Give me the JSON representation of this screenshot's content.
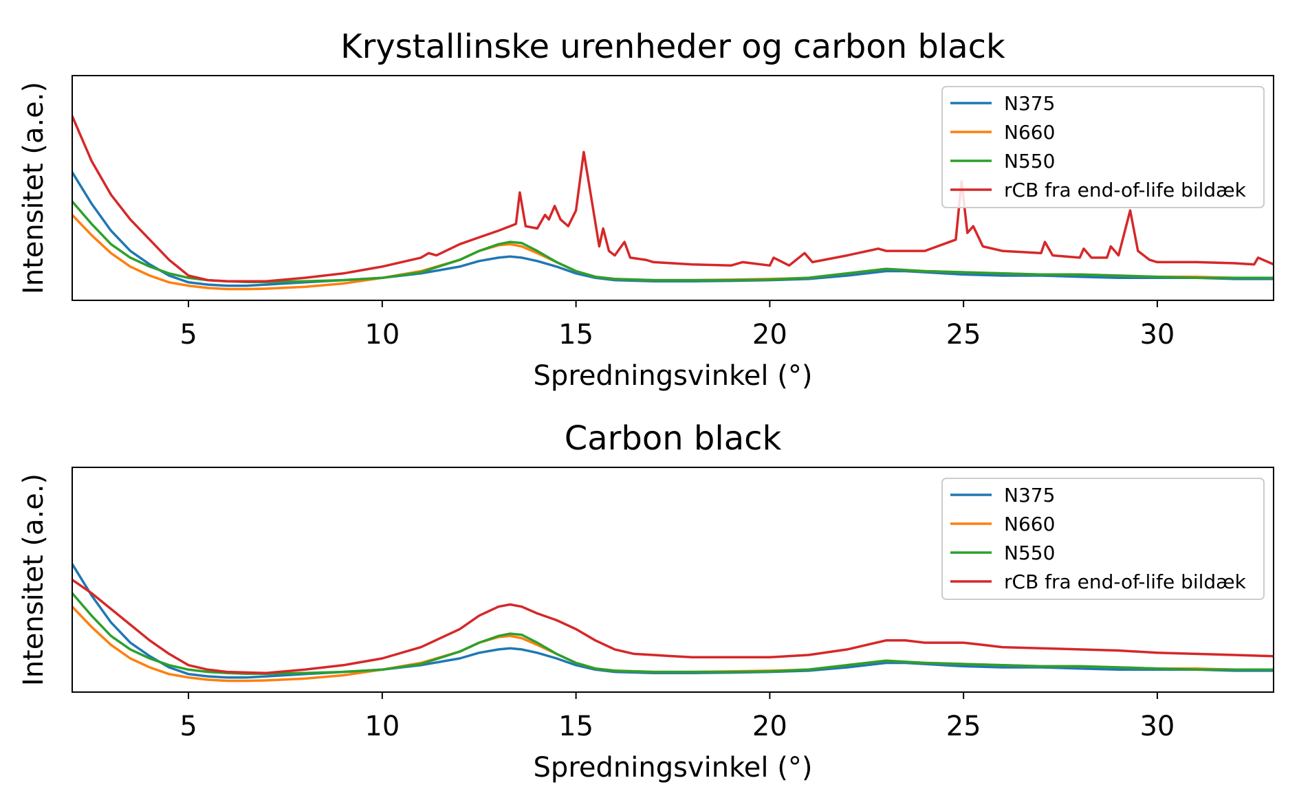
{
  "chart_data": [
    {
      "type": "line",
      "title": "Krystallinske urenheder og carbon black",
      "xlabel": "Spredningsvinkel (°)",
      "ylabel": "Intensitet (a.e.)",
      "xlim": [
        2,
        33
      ],
      "ylim": [
        0,
        1
      ],
      "y_ticks_shown": false,
      "x_ticks": [
        5,
        10,
        15,
        20,
        25,
        30
      ],
      "grid": false,
      "legend_position": "top-right",
      "series": [
        {
          "name": "N375",
          "color": "#1f77b4",
          "x": [
            2,
            2.5,
            3,
            3.5,
            4,
            4.5,
            5,
            5.5,
            6,
            6.5,
            7,
            8,
            9,
            10,
            11,
            12,
            12.5,
            13,
            13.3,
            13.6,
            14,
            14.5,
            15,
            15.5,
            16,
            17,
            18,
            19,
            20,
            21,
            22,
            22.5,
            23,
            23.5,
            24,
            25,
            26,
            27,
            28,
            29,
            30,
            31,
            32,
            33
          ],
          "y": [
            0.57,
            0.43,
            0.31,
            0.22,
            0.16,
            0.11,
            0.08,
            0.07,
            0.065,
            0.065,
            0.07,
            0.08,
            0.09,
            0.1,
            0.12,
            0.15,
            0.175,
            0.19,
            0.195,
            0.19,
            0.175,
            0.15,
            0.12,
            0.1,
            0.09,
            0.085,
            0.085,
            0.087,
            0.09,
            0.095,
            0.11,
            0.12,
            0.13,
            0.13,
            0.125,
            0.115,
            0.11,
            0.11,
            0.105,
            0.1,
            0.1,
            0.1,
            0.095,
            0.095
          ]
        },
        {
          "name": "N660",
          "color": "#ff7f0e",
          "x": [
            2,
            2.5,
            3,
            3.5,
            4,
            4.5,
            5,
            5.5,
            6,
            6.5,
            7,
            8,
            9,
            10,
            11,
            12,
            12.5,
            13,
            13.3,
            13.6,
            14,
            14.5,
            15,
            15.5,
            16,
            17,
            18,
            19,
            20,
            21,
            22,
            22.5,
            23,
            23.5,
            24,
            25,
            26,
            27,
            28,
            29,
            30,
            31,
            32,
            33
          ],
          "y": [
            0.38,
            0.29,
            0.21,
            0.15,
            0.11,
            0.08,
            0.065,
            0.055,
            0.05,
            0.05,
            0.052,
            0.06,
            0.075,
            0.1,
            0.13,
            0.18,
            0.22,
            0.245,
            0.25,
            0.24,
            0.21,
            0.17,
            0.13,
            0.105,
            0.095,
            0.09,
            0.09,
            0.092,
            0.095,
            0.1,
            0.12,
            0.13,
            0.14,
            0.135,
            0.13,
            0.125,
            0.12,
            0.115,
            0.115,
            0.11,
            0.105,
            0.105,
            0.1,
            0.1
          ]
        },
        {
          "name": "N550",
          "color": "#2ca02c",
          "x": [
            2,
            2.5,
            3,
            3.5,
            4,
            4.5,
            5,
            5.5,
            6,
            6.5,
            7,
            8,
            9,
            10,
            11,
            12,
            12.5,
            13,
            13.3,
            13.6,
            14,
            14.5,
            15,
            15.5,
            16,
            17,
            18,
            19,
            20,
            21,
            22,
            22.5,
            23,
            23.5,
            24,
            25,
            26,
            27,
            28,
            29,
            30,
            31,
            32,
            33
          ],
          "y": [
            0.44,
            0.34,
            0.25,
            0.19,
            0.15,
            0.12,
            0.1,
            0.09,
            0.085,
            0.082,
            0.082,
            0.085,
            0.09,
            0.1,
            0.125,
            0.18,
            0.22,
            0.25,
            0.26,
            0.255,
            0.22,
            0.17,
            0.13,
            0.105,
            0.095,
            0.09,
            0.09,
            0.09,
            0.092,
            0.1,
            0.12,
            0.13,
            0.14,
            0.135,
            0.13,
            0.125,
            0.12,
            0.115,
            0.115,
            0.11,
            0.105,
            0.1,
            0.1,
            0.1
          ]
        },
        {
          "name": "rCB fra end-of-life bildæk",
          "color": "#d62728",
          "x": [
            2,
            2.5,
            3,
            3.5,
            4,
            4.5,
            5,
            5.5,
            6,
            7,
            8,
            9,
            10,
            11,
            11.2,
            11.4,
            12,
            12.5,
            13,
            13.3,
            13.45,
            13.55,
            13.7,
            14,
            14.2,
            14.3,
            14.45,
            14.6,
            14.8,
            15,
            15.2,
            15.4,
            15.6,
            15.7,
            15.85,
            16,
            16.25,
            16.4,
            16.8,
            17,
            18,
            19,
            19.3,
            20,
            20.1,
            20.5,
            20.9,
            21.1,
            22,
            22.8,
            23,
            24,
            24.8,
            24.95,
            25.1,
            25.25,
            25.5,
            26,
            27,
            27.1,
            27.3,
            28,
            28.1,
            28.3,
            28.7,
            28.8,
            29,
            29.3,
            29.5,
            29.8,
            30,
            31,
            32,
            32.5,
            32.6,
            33
          ],
          "y": [
            0.82,
            0.62,
            0.47,
            0.36,
            0.27,
            0.18,
            0.11,
            0.09,
            0.085,
            0.085,
            0.1,
            0.12,
            0.15,
            0.19,
            0.21,
            0.2,
            0.25,
            0.28,
            0.31,
            0.33,
            0.34,
            0.48,
            0.33,
            0.32,
            0.38,
            0.36,
            0.42,
            0.36,
            0.33,
            0.4,
            0.66,
            0.45,
            0.24,
            0.32,
            0.22,
            0.2,
            0.26,
            0.19,
            0.18,
            0.17,
            0.16,
            0.155,
            0.17,
            0.155,
            0.19,
            0.155,
            0.21,
            0.17,
            0.2,
            0.23,
            0.22,
            0.22,
            0.27,
            0.53,
            0.3,
            0.33,
            0.24,
            0.22,
            0.21,
            0.26,
            0.2,
            0.19,
            0.23,
            0.19,
            0.19,
            0.24,
            0.2,
            0.4,
            0.22,
            0.18,
            0.17,
            0.17,
            0.165,
            0.16,
            0.19,
            0.16
          ]
        }
      ]
    },
    {
      "type": "line",
      "title": "Carbon black",
      "xlabel": "Spredningsvinkel (°)",
      "ylabel": "Intensitet (a.e.)",
      "xlim": [
        2,
        33
      ],
      "ylim": [
        0,
        1
      ],
      "y_ticks_shown": false,
      "x_ticks": [
        5,
        10,
        15,
        20,
        25,
        30
      ],
      "grid": false,
      "legend_position": "top-right",
      "series": [
        {
          "name": "N375",
          "color": "#1f77b4",
          "x": [
            2,
            2.5,
            3,
            3.5,
            4,
            4.5,
            5,
            5.5,
            6,
            6.5,
            7,
            8,
            9,
            10,
            11,
            12,
            12.5,
            13,
            13.3,
            13.6,
            14,
            14.5,
            15,
            15.5,
            16,
            17,
            18,
            19,
            20,
            21,
            22,
            22.5,
            23,
            23.5,
            24,
            25,
            26,
            27,
            28,
            29,
            30,
            31,
            32,
            33
          ],
          "y": [
            0.57,
            0.43,
            0.31,
            0.22,
            0.16,
            0.11,
            0.08,
            0.07,
            0.065,
            0.065,
            0.07,
            0.08,
            0.09,
            0.1,
            0.12,
            0.15,
            0.175,
            0.19,
            0.195,
            0.19,
            0.175,
            0.15,
            0.12,
            0.1,
            0.09,
            0.085,
            0.085,
            0.087,
            0.09,
            0.095,
            0.11,
            0.12,
            0.13,
            0.13,
            0.125,
            0.115,
            0.11,
            0.11,
            0.105,
            0.1,
            0.1,
            0.1,
            0.095,
            0.095
          ]
        },
        {
          "name": "N660",
          "color": "#ff7f0e",
          "x": [
            2,
            2.5,
            3,
            3.5,
            4,
            4.5,
            5,
            5.5,
            6,
            6.5,
            7,
            8,
            9,
            10,
            11,
            12,
            12.5,
            13,
            13.3,
            13.6,
            14,
            14.5,
            15,
            15.5,
            16,
            17,
            18,
            19,
            20,
            21,
            22,
            22.5,
            23,
            23.5,
            24,
            25,
            26,
            27,
            28,
            29,
            30,
            31,
            32,
            33
          ],
          "y": [
            0.38,
            0.29,
            0.21,
            0.15,
            0.11,
            0.08,
            0.065,
            0.055,
            0.05,
            0.05,
            0.052,
            0.06,
            0.075,
            0.1,
            0.13,
            0.18,
            0.22,
            0.245,
            0.25,
            0.24,
            0.21,
            0.17,
            0.13,
            0.105,
            0.095,
            0.09,
            0.09,
            0.092,
            0.095,
            0.1,
            0.12,
            0.13,
            0.14,
            0.135,
            0.13,
            0.125,
            0.12,
            0.115,
            0.115,
            0.11,
            0.105,
            0.105,
            0.1,
            0.1
          ]
        },
        {
          "name": "N550",
          "color": "#2ca02c",
          "x": [
            2,
            2.5,
            3,
            3.5,
            4,
            4.5,
            5,
            5.5,
            6,
            6.5,
            7,
            8,
            9,
            10,
            11,
            12,
            12.5,
            13,
            13.3,
            13.6,
            14,
            14.5,
            15,
            15.5,
            16,
            17,
            18,
            19,
            20,
            21,
            22,
            22.5,
            23,
            23.5,
            24,
            25,
            26,
            27,
            28,
            29,
            30,
            31,
            32,
            33
          ],
          "y": [
            0.44,
            0.34,
            0.25,
            0.19,
            0.15,
            0.12,
            0.1,
            0.09,
            0.085,
            0.082,
            0.082,
            0.085,
            0.09,
            0.1,
            0.125,
            0.18,
            0.22,
            0.25,
            0.26,
            0.255,
            0.22,
            0.17,
            0.13,
            0.105,
            0.095,
            0.09,
            0.09,
            0.09,
            0.092,
            0.1,
            0.12,
            0.13,
            0.14,
            0.135,
            0.13,
            0.125,
            0.12,
            0.115,
            0.115,
            0.11,
            0.105,
            0.1,
            0.1,
            0.1
          ]
        },
        {
          "name": "rCB fra end-of-life bildæk",
          "color": "#d62728",
          "x": [
            2,
            2.5,
            3,
            3.5,
            4,
            4.5,
            5,
            5.5,
            6,
            7,
            8,
            9,
            10,
            11,
            12,
            12.5,
            13,
            13.3,
            13.6,
            14,
            14.5,
            15,
            15.5,
            16,
            16.5,
            17,
            17.5,
            18,
            19,
            20,
            21,
            22,
            22.5,
            23,
            23.5,
            24,
            25,
            25.5,
            26,
            27,
            28,
            29,
            30,
            31,
            32,
            33
          ],
          "y": [
            0.5,
            0.44,
            0.37,
            0.3,
            0.23,
            0.17,
            0.12,
            0.1,
            0.09,
            0.085,
            0.1,
            0.12,
            0.15,
            0.2,
            0.28,
            0.34,
            0.38,
            0.39,
            0.38,
            0.35,
            0.32,
            0.28,
            0.23,
            0.19,
            0.17,
            0.165,
            0.16,
            0.155,
            0.155,
            0.155,
            0.165,
            0.19,
            0.21,
            0.23,
            0.23,
            0.22,
            0.22,
            0.21,
            0.2,
            0.195,
            0.19,
            0.185,
            0.175,
            0.17,
            0.165,
            0.16
          ]
        }
      ]
    }
  ]
}
